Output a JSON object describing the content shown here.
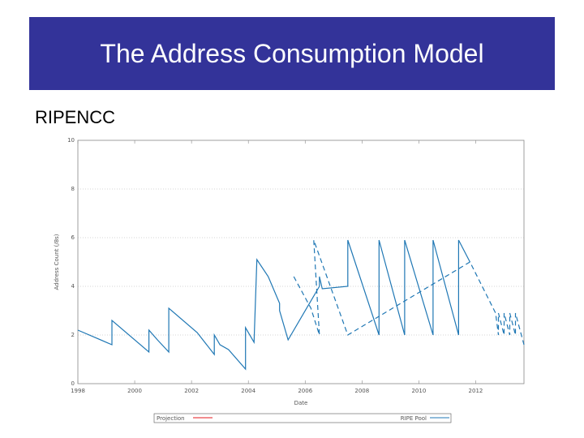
{
  "slide": {
    "title": "The Address Consumption Model",
    "subtitle": "RIPENCC"
  },
  "colors": {
    "title_bg": "#333399",
    "series": "#1f77b4",
    "projection": "#e41a1c"
  },
  "chart_data": {
    "type": "line",
    "title": "",
    "xlabel": "Date",
    "ylabel": "Address Count (/8s)",
    "xlim": [
      1998,
      2013.7
    ],
    "ylim": [
      0,
      10
    ],
    "x_ticks": [
      "1998",
      "2000",
      "2002",
      "2004",
      "2006",
      "2008",
      "2010",
      "2012"
    ],
    "y_ticks": [
      "0",
      "2",
      "4",
      "6",
      "8",
      "10"
    ],
    "grid": "dotted",
    "legend": [
      "Projection",
      "RIPE Pool"
    ],
    "legend_position": "bottom",
    "series": [
      {
        "name": "RIPE Pool",
        "style": "solid",
        "points": [
          [
            1998.0,
            2.2
          ],
          [
            1999.2,
            1.6
          ],
          [
            1999.2,
            2.6
          ],
          [
            2000.5,
            1.3
          ],
          [
            2000.5,
            2.2
          ],
          [
            2000.8,
            1.8
          ],
          [
            2001.2,
            1.3
          ],
          [
            2001.2,
            3.1
          ],
          [
            2002.2,
            2.1
          ],
          [
            2002.8,
            1.2
          ],
          [
            2002.8,
            2.0
          ],
          [
            2003.0,
            1.6
          ],
          [
            2003.3,
            1.4
          ],
          [
            2003.9,
            0.6
          ],
          [
            2003.9,
            2.3
          ],
          [
            2004.2,
            1.7
          ],
          [
            2004.3,
            5.1
          ],
          [
            2004.7,
            4.4
          ],
          [
            2005.1,
            3.3
          ],
          [
            2005.1,
            3.0
          ],
          [
            2005.4,
            1.8
          ],
          [
            2006.5,
            4.0
          ],
          [
            2006.5,
            4.4
          ],
          [
            2006.6,
            3.9
          ],
          [
            2007.5,
            4.0
          ],
          [
            2007.5,
            5.9
          ],
          [
            2008.6,
            2.0
          ],
          [
            2008.6,
            5.9
          ],
          [
            2009.5,
            2.0
          ],
          [
            2009.5,
            5.9
          ],
          [
            2010.5,
            2.0
          ],
          [
            2010.5,
            5.9
          ],
          [
            2011.4,
            2.0
          ],
          [
            2011.4,
            5.9
          ],
          [
            2011.8,
            5.0
          ]
        ]
      },
      {
        "name": "RIPE Pool (projected)",
        "style": "dashed",
        "points": [
          [
            2005.6,
            4.4
          ],
          [
            2006.2,
            3.1
          ],
          [
            2006.5,
            2.0
          ],
          [
            2006.3,
            5.9
          ],
          [
            2007.5,
            2.0
          ],
          [
            2011.8,
            5.0
          ],
          [
            2012.7,
            2.9
          ],
          [
            2012.7,
            2.9
          ],
          [
            2012.8,
            2.0
          ],
          [
            2012.8,
            2.9
          ],
          [
            2013.0,
            2.0
          ],
          [
            2013.0,
            2.9
          ],
          [
            2013.2,
            2.0
          ],
          [
            2013.2,
            2.9
          ],
          [
            2013.4,
            2.0
          ],
          [
            2013.4,
            2.9
          ],
          [
            2013.7,
            1.6
          ]
        ]
      }
    ]
  }
}
